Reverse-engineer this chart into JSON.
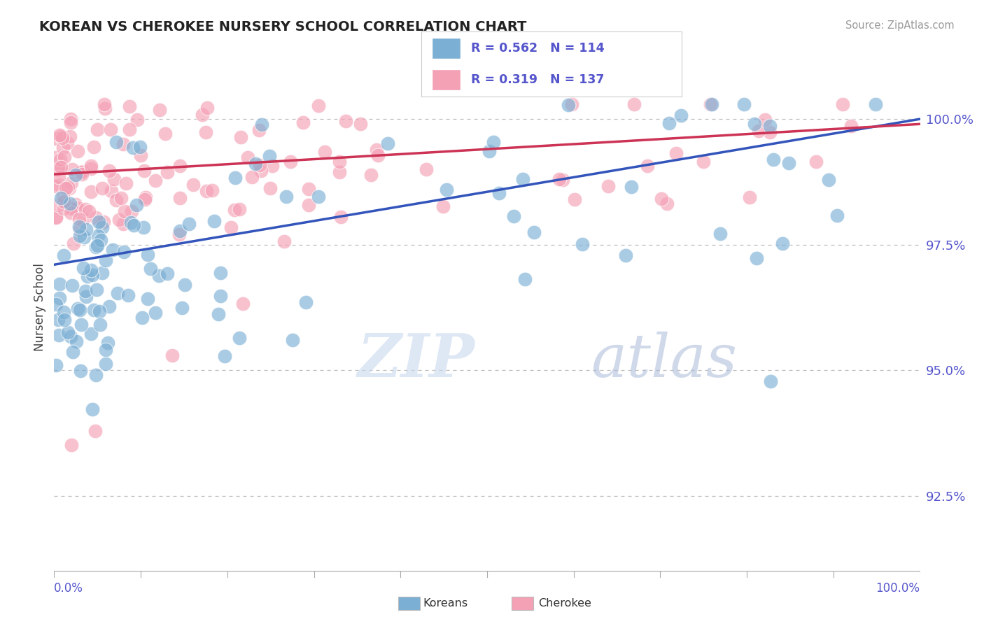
{
  "title": "KOREAN VS CHEROKEE NURSERY SCHOOL CORRELATION CHART",
  "source": "Source: ZipAtlas.com",
  "ylabel": "Nursery School",
  "y_ticks": [
    92.5,
    95.0,
    97.5,
    100.0
  ],
  "x_range": [
    0.0,
    100.0
  ],
  "y_range": [
    91.0,
    101.5
  ],
  "korean_color": "#7bafd4",
  "cherokee_color": "#f4a0b5",
  "korean_R": 0.562,
  "korean_N": 114,
  "cherokee_R": 0.319,
  "cherokee_N": 137,
  "legend_label_korean": "Koreans",
  "legend_label_cherokee": "Cherokee",
  "watermark_zip": "ZIP",
  "watermark_atlas": "atlas",
  "background_color": "#ffffff",
  "grid_color": "#cccccc",
  "title_color": "#222222",
  "axis_label_color": "#5555cc",
  "trend_blue": "#3355bb",
  "trend_pink": "#cc3355",
  "korean_line_start_y": 97.1,
  "korean_line_end_y": 100.0,
  "cherokee_line_start_y": 98.9,
  "cherokee_line_end_y": 99.9
}
